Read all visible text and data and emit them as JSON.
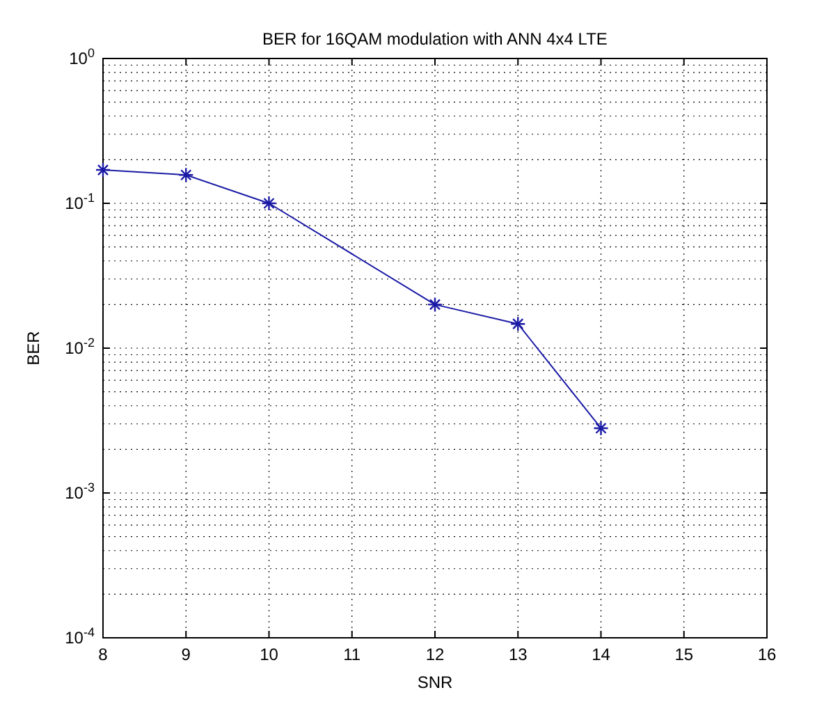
{
  "chart_data": {
    "type": "line",
    "title": "BER for 16QAM modulation with ANN 4x4 LTE",
    "xlabel": "SNR",
    "ylabel": "BER",
    "x": [
      8,
      9,
      10,
      12,
      13,
      14
    ],
    "series": [
      {
        "color": "#1a1aa6",
        "values": [
          0.17,
          0.157,
          0.1,
          0.02,
          0.0147,
          0.0028
        ]
      }
    ],
    "xlim": [
      8,
      16
    ],
    "xticks": [
      8,
      9,
      10,
      11,
      12,
      13,
      14,
      15,
      16
    ],
    "ylim": [
      0.0001,
      1
    ],
    "yticks": [
      {
        "value": 0.0001,
        "label": "10$^{-4}$"
      },
      {
        "value": 0.001,
        "label": "10$^{-3}$"
      },
      {
        "value": 0.01,
        "label": "10$^{-2}$"
      },
      {
        "value": 0.1,
        "label": "10$^{-1}$"
      },
      {
        "value": 1,
        "label": "10$^{0}$"
      }
    ],
    "log": "y",
    "grid": true,
    "marker": "cross",
    "line_style": "solid"
  }
}
